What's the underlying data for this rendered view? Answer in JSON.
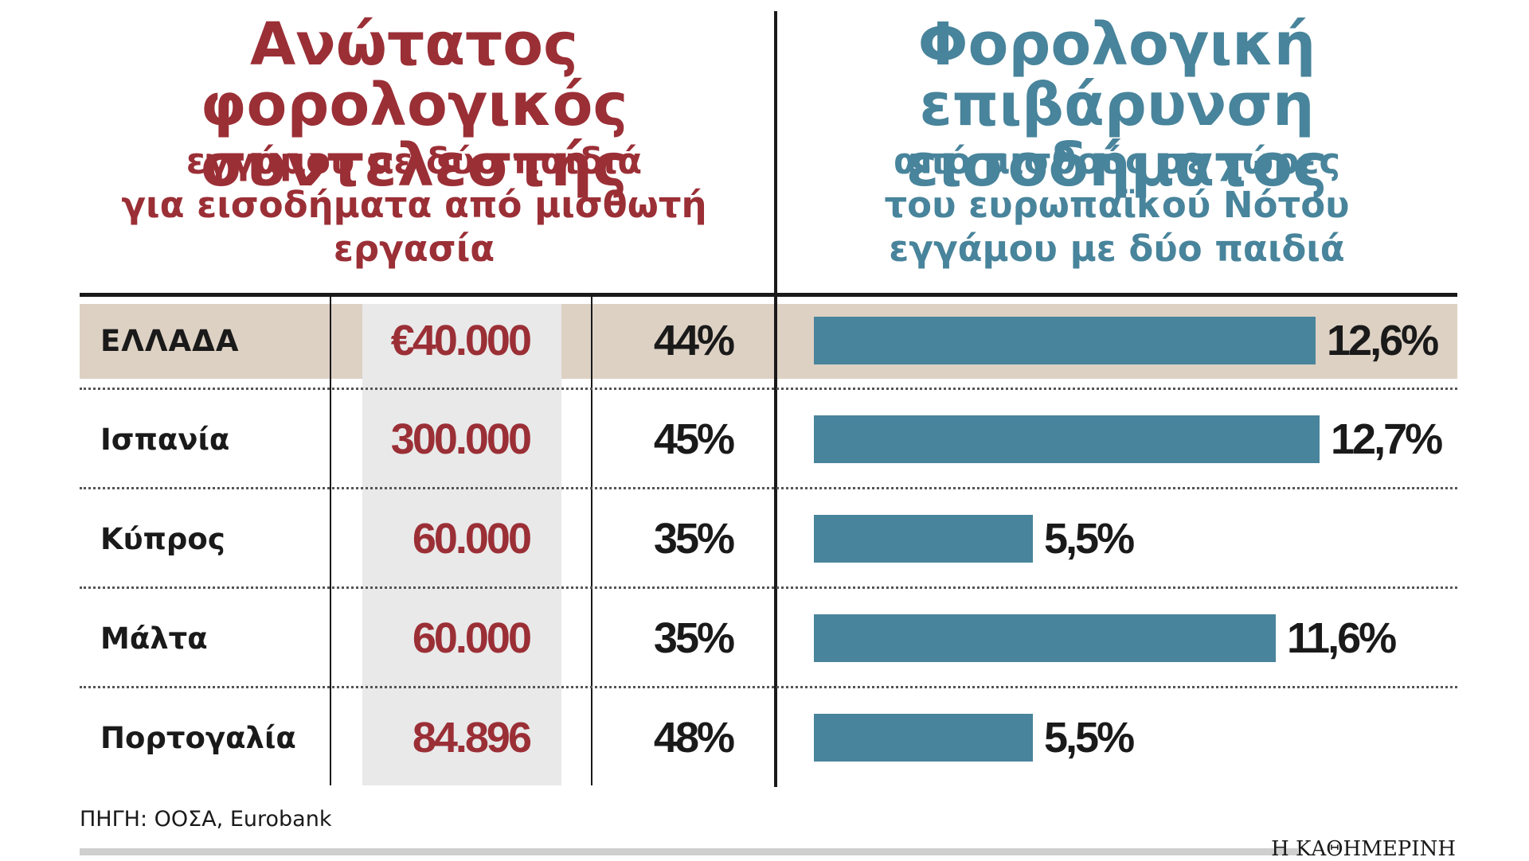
{
  "left_header": {
    "title_lines": [
      "Ανώτατος φορολογικός",
      "συντελεστής"
    ],
    "subtitle_lines": [
      "εγγάμου με δύο παιδιά",
      "για εισοδήματα από μισθωτή",
      "εργασία"
    ]
  },
  "right_header": {
    "title_lines": [
      "Φορολογική",
      "επιβάρυνση εισοδήματος"
    ],
    "subtitle_lines": [
      "από μισθούς σε χώρες",
      "του ευρωπαϊκού Νότου",
      "εγγάμου με δύο παιδιά"
    ]
  },
  "colors": {
    "left_accent": "#9b2f36",
    "right_accent": "#48849b",
    "highlight_row": "#ddd1c4",
    "income_column": "#e9e9e9"
  },
  "chart_data": {
    "type": "table",
    "columns": [
      "country",
      "income_threshold",
      "top_tax_rate",
      "tax_burden"
    ],
    "rows": [
      {
        "country": "ΕΛΛΑΔΑ",
        "income": "€40.000",
        "rate": "44%",
        "burden_label": "12,6%",
        "burden": 12.6,
        "highlight": true
      },
      {
        "country": "Ισπανία",
        "income": "300.000",
        "rate": "45%",
        "burden_label": "12,7%",
        "burden": 12.7,
        "highlight": false
      },
      {
        "country": "Κύπρος",
        "income": "60.000",
        "rate": "35%",
        "burden_label": "5,5%",
        "burden": 5.5,
        "highlight": false
      },
      {
        "country": "Μάλτα",
        "income": "60.000",
        "rate": "35%",
        "burden_label": "11,6%",
        "burden": 11.6,
        "highlight": false
      },
      {
        "country": "Πορτογαλία",
        "income": "84.896",
        "rate": "48%",
        "burden_label": "5,5%",
        "burden": 5.5,
        "highlight": false
      }
    ],
    "bar_series": {
      "type": "bar",
      "orientation": "horizontal",
      "values": [
        12.6,
        12.7,
        5.5,
        11.6,
        5.5
      ]
    }
  },
  "footer": {
    "source": "ΠΗΓΗ: ΟΟΣΑ, Eurobank",
    "brand": "Η ΚΑΘΗΜΕΡΙΝΗ"
  }
}
